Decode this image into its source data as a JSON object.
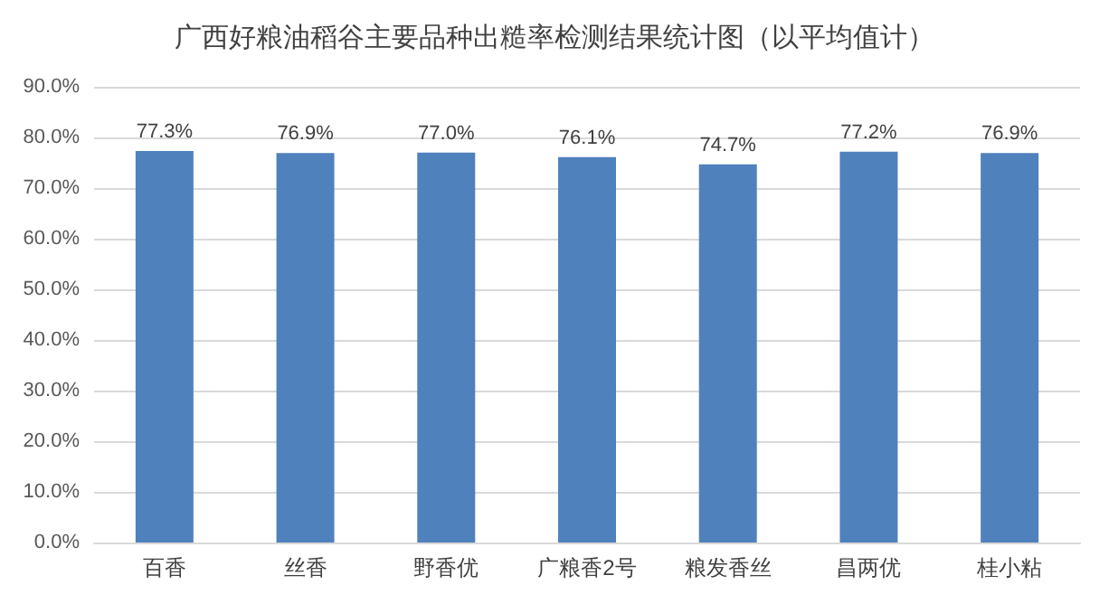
{
  "chart_data": {
    "type": "bar",
    "title": "广西好粮油稻谷主要品种出糙率检测结果统计图（以平均值计）",
    "categories": [
      "百香",
      "丝香",
      "野香优",
      "广粮香2号",
      "粮发香丝",
      "昌两优",
      "桂小粘"
    ],
    "values": [
      77.3,
      76.9,
      77.0,
      76.1,
      74.7,
      77.2,
      76.9
    ],
    "value_labels": [
      "77.3%",
      "76.9%",
      "77.0%",
      "76.1%",
      "74.7%",
      "77.2%",
      "76.9%"
    ],
    "color": "#4f81bd",
    "ylim": [
      0,
      90
    ],
    "yticks": [
      {
        "value": 0,
        "label": "0.0%"
      },
      {
        "value": 10,
        "label": "10.0%"
      },
      {
        "value": 20,
        "label": "20.0%"
      },
      {
        "value": 30,
        "label": "30.0%"
      },
      {
        "value": 40,
        "label": "40.0%"
      },
      {
        "value": 50,
        "label": "50.0%"
      },
      {
        "value": 60,
        "label": "60.0%"
      },
      {
        "value": 70,
        "label": "70.0%"
      },
      {
        "value": 80,
        "label": "80.0%"
      },
      {
        "value": 90,
        "label": "90.0%"
      }
    ],
    "grid": "y"
  }
}
